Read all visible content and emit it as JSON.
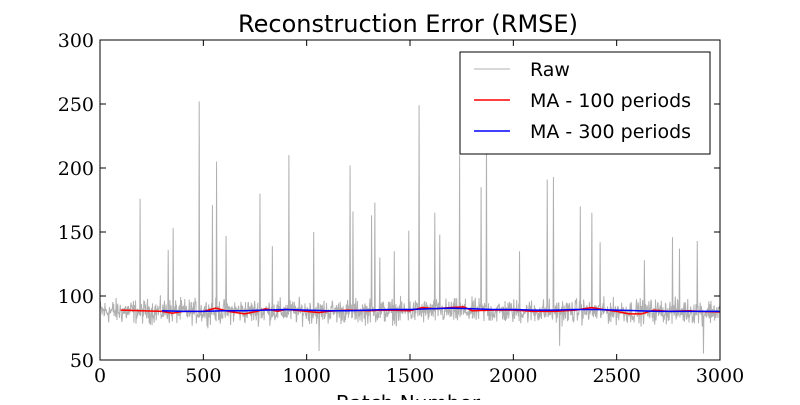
{
  "chart_data": {
    "type": "line",
    "title": "Reconstruction Error (RMSE)",
    "xlabel": "Batch Number",
    "ylabel": "",
    "xlim": [
      0,
      3000
    ],
    "ylim": [
      50,
      300
    ],
    "x_ticks": [
      0,
      500,
      1000,
      1500,
      2000,
      2500,
      3000
    ],
    "y_ticks": [
      50,
      100,
      150,
      200,
      250,
      300
    ],
    "grid": false,
    "legend_position": "top-right",
    "colors": {
      "raw": "#b0b0b0",
      "ma100": "#ff0000",
      "ma300": "#0000ff"
    },
    "series": [
      {
        "name": "Raw",
        "noise_base": 88,
        "noise_amplitude": 14,
        "x_start": 0,
        "x_end": 3000,
        "spikes": [
          {
            "x": 195,
            "y": 176
          },
          {
            "x": 330,
            "y": 136
          },
          {
            "x": 355,
            "y": 153
          },
          {
            "x": 480,
            "y": 252
          },
          {
            "x": 545,
            "y": 171
          },
          {
            "x": 565,
            "y": 205
          },
          {
            "x": 610,
            "y": 147
          },
          {
            "x": 775,
            "y": 180
          },
          {
            "x": 835,
            "y": 139
          },
          {
            "x": 915,
            "y": 210
          },
          {
            "x": 1035,
            "y": 150
          },
          {
            "x": 1210,
            "y": 202
          },
          {
            "x": 1225,
            "y": 166
          },
          {
            "x": 1315,
            "y": 163
          },
          {
            "x": 1330,
            "y": 173
          },
          {
            "x": 1355,
            "y": 130
          },
          {
            "x": 1425,
            "y": 135
          },
          {
            "x": 1495,
            "y": 151
          },
          {
            "x": 1545,
            "y": 249
          },
          {
            "x": 1620,
            "y": 165
          },
          {
            "x": 1645,
            "y": 148
          },
          {
            "x": 1740,
            "y": 210
          },
          {
            "x": 1845,
            "y": 185
          },
          {
            "x": 1870,
            "y": 230
          },
          {
            "x": 2030,
            "y": 135
          },
          {
            "x": 2165,
            "y": 191
          },
          {
            "x": 2195,
            "y": 193
          },
          {
            "x": 2325,
            "y": 170
          },
          {
            "x": 2380,
            "y": 165
          },
          {
            "x": 2420,
            "y": 142
          },
          {
            "x": 2635,
            "y": 128
          },
          {
            "x": 2770,
            "y": 146
          },
          {
            "x": 2805,
            "y": 137
          },
          {
            "x": 2890,
            "y": 143
          }
        ],
        "dips": [
          {
            "x": 1060,
            "y": 57
          },
          {
            "x": 2225,
            "y": 61
          },
          {
            "x": 2920,
            "y": 55
          }
        ]
      },
      {
        "name": "MA - 100 periods",
        "points": [
          [
            100,
            89
          ],
          [
            200,
            88.5
          ],
          [
            300,
            88
          ],
          [
            350,
            86.5
          ],
          [
            400,
            88
          ],
          [
            500,
            88
          ],
          [
            560,
            90.5
          ],
          [
            620,
            88
          ],
          [
            700,
            86
          ],
          [
            760,
            88
          ],
          [
            800,
            90
          ],
          [
            860,
            88
          ],
          [
            900,
            89.5
          ],
          [
            1000,
            88
          ],
          [
            1060,
            87
          ],
          [
            1100,
            88
          ],
          [
            1200,
            89
          ],
          [
            1300,
            88.5
          ],
          [
            1400,
            89
          ],
          [
            1500,
            88.5
          ],
          [
            1560,
            91
          ],
          [
            1620,
            90
          ],
          [
            1700,
            91
          ],
          [
            1760,
            91.5
          ],
          [
            1800,
            88.5
          ],
          [
            1900,
            89
          ],
          [
            2000,
            89
          ],
          [
            2100,
            88
          ],
          [
            2200,
            88
          ],
          [
            2300,
            89
          ],
          [
            2380,
            91
          ],
          [
            2450,
            89
          ],
          [
            2500,
            88
          ],
          [
            2560,
            86
          ],
          [
            2620,
            86
          ],
          [
            2680,
            89
          ],
          [
            2750,
            88
          ],
          [
            2850,
            88.5
          ],
          [
            2900,
            88
          ],
          [
            3000,
            87.5
          ]
        ]
      },
      {
        "name": "MA - 300 periods",
        "points": [
          [
            300,
            88.5
          ],
          [
            400,
            88
          ],
          [
            500,
            88
          ],
          [
            600,
            88.5
          ],
          [
            700,
            88.5
          ],
          [
            800,
            89
          ],
          [
            900,
            89.5
          ],
          [
            1000,
            89
          ],
          [
            1100,
            88.5
          ],
          [
            1200,
            88.5
          ],
          [
            1300,
            89
          ],
          [
            1400,
            89.5
          ],
          [
            1500,
            89.5
          ],
          [
            1600,
            90
          ],
          [
            1700,
            90.5
          ],
          [
            1800,
            90
          ],
          [
            1900,
            89.5
          ],
          [
            2000,
            89.5
          ],
          [
            2100,
            89
          ],
          [
            2200,
            89
          ],
          [
            2300,
            89.5
          ],
          [
            2400,
            89.5
          ],
          [
            2500,
            89
          ],
          [
            2600,
            88.5
          ],
          [
            2700,
            88
          ],
          [
            2800,
            88
          ],
          [
            2900,
            88
          ],
          [
            3000,
            88
          ]
        ]
      }
    ]
  }
}
